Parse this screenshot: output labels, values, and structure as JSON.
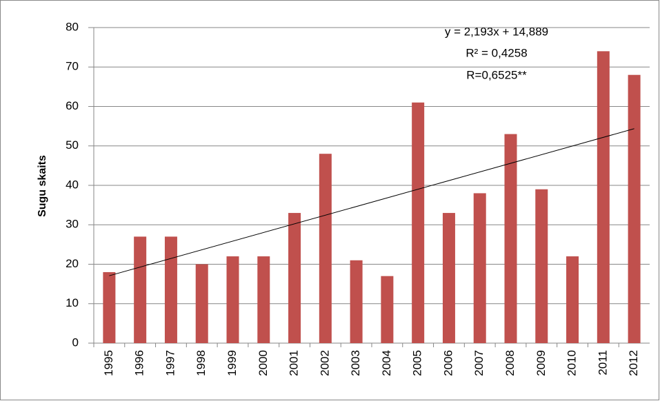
{
  "chart_data": {
    "type": "bar",
    "ylabel": "Sugu skaits",
    "categories": [
      "1995",
      "1996",
      "1997",
      "1998",
      "1999",
      "2000",
      "2001",
      "2002",
      "2003",
      "2004",
      "2005",
      "2006",
      "2007",
      "2008",
      "2009",
      "2010",
      "2011",
      "2012"
    ],
    "values": [
      18,
      27,
      27,
      20,
      22,
      22,
      33,
      48,
      21,
      17,
      61,
      33,
      38,
      53,
      39,
      22,
      74,
      68
    ],
    "color": "#c0504d",
    "ylim": [
      0,
      80
    ],
    "yticks": [
      0,
      10,
      20,
      30,
      40,
      50,
      60,
      70,
      80
    ],
    "grid": true,
    "trendline": {
      "slope": 2.193,
      "intercept": 14.889,
      "label": "y = 2,193x + 14,889",
      "color": "#000000"
    },
    "annotations": [
      "R² = 0,4258",
      "R=0,6525**"
    ]
  }
}
